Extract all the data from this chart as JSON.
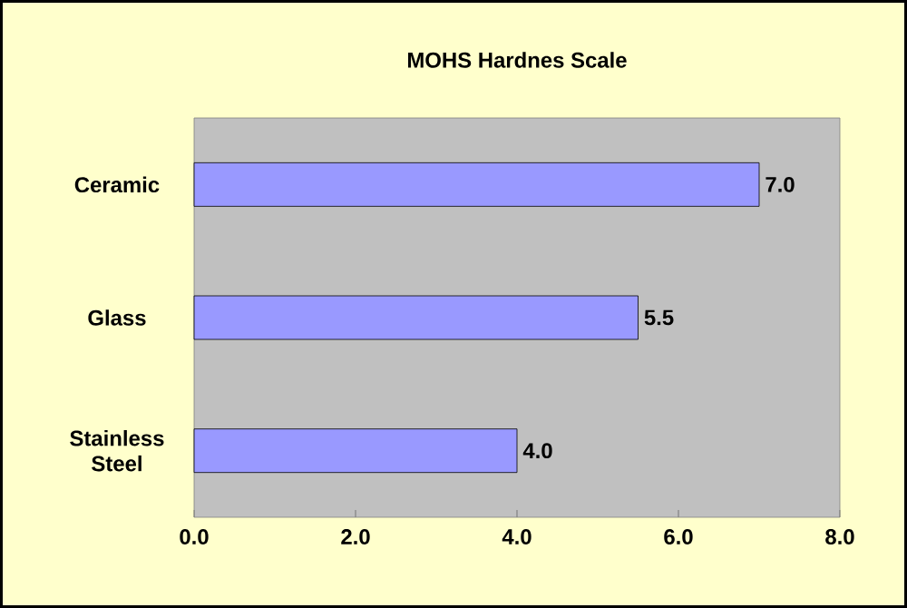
{
  "chart_data": {
    "type": "bar",
    "orientation": "horizontal",
    "title": "MOHS Hardnes Scale",
    "categories": [
      "Ceramic",
      "Glass",
      "Stainless Steel"
    ],
    "values": [
      7.0,
      5.5,
      4.0
    ],
    "value_labels": [
      "7.0",
      "5.5",
      "4.0"
    ],
    "color": "#9999ff",
    "xlim": [
      0,
      8
    ],
    "xticks": [
      {
        "value": 0,
        "label": "0.0"
      },
      {
        "value": 2,
        "label": "2.0"
      },
      {
        "value": 4,
        "label": "4.0"
      },
      {
        "value": 6,
        "label": "6.0"
      },
      {
        "value": 8,
        "label": "8.0"
      }
    ],
    "grid": false
  }
}
